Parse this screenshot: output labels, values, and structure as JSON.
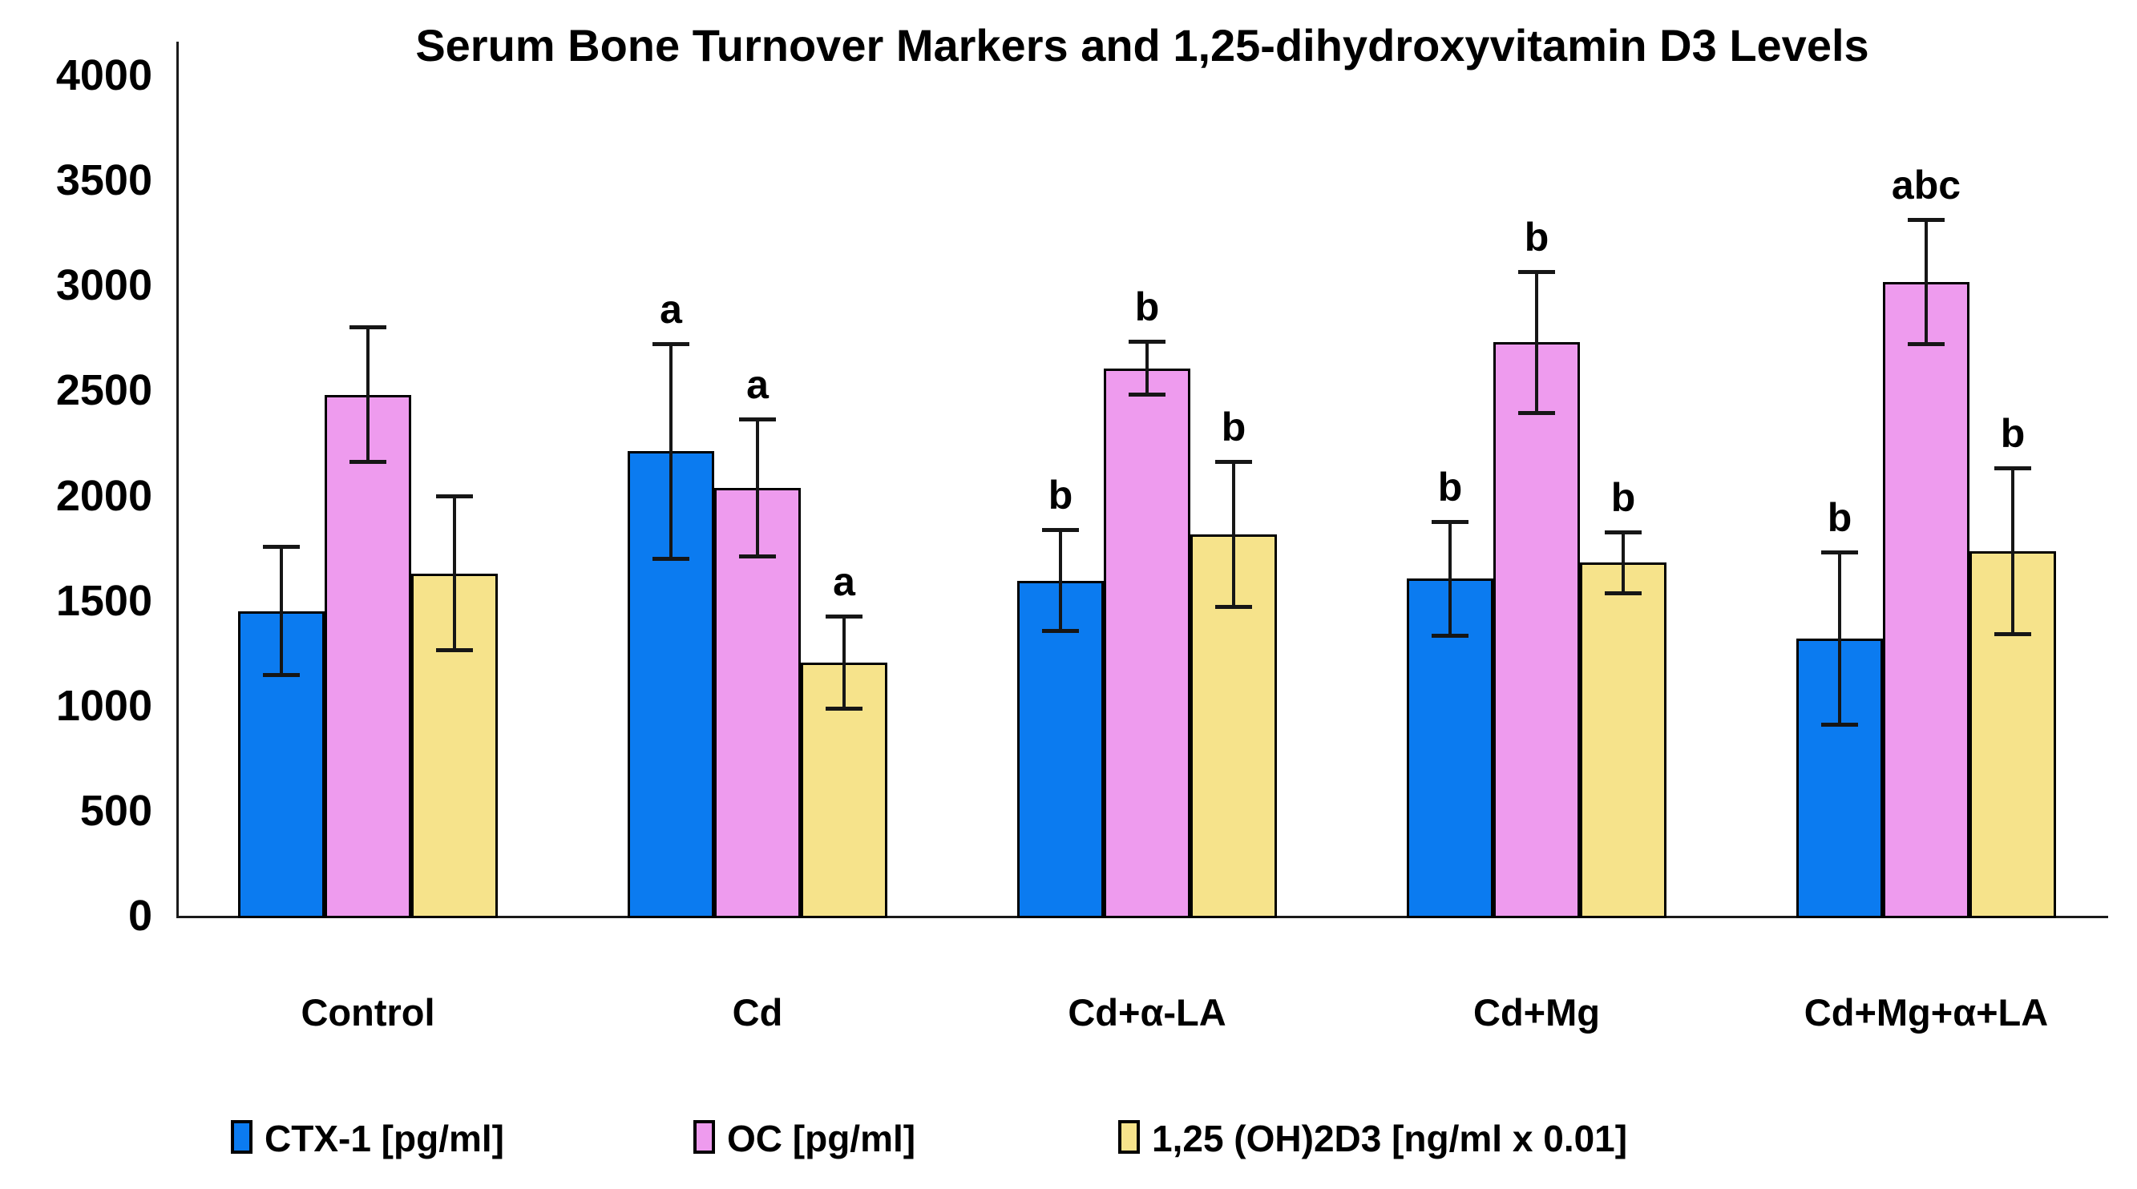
{
  "title": "Serum Bone Turnover Markers and 1,25-dihydroxyvitamin D3 Levels",
  "chart_data": {
    "type": "bar",
    "title": "Serum Bone Turnover Markers and 1,25-dihydroxyvitamin D3 Levels",
    "categories": [
      "Control",
      "Cd",
      "Cd+α-LA",
      "Cd+Mg",
      "Cd+Mg+α+LA"
    ],
    "series": [
      {
        "name": "CTX-1 [pg/ml]",
        "color": "#0b7bf0",
        "values": [
          1450,
          2210,
          1595,
          1605,
          1320
        ],
        "errors": [
          315,
          520,
          250,
          280,
          420
        ],
        "letters": [
          "",
          "a",
          "b",
          "b",
          "b"
        ]
      },
      {
        "name": "OC [pg/ml]",
        "color": "#ee9bee",
        "values": [
          2480,
          2035,
          2605,
          2730,
          3015
        ],
        "errors": [
          330,
          335,
          135,
          345,
          305
        ],
        "letters": [
          "",
          "a",
          "b",
          "b",
          "abc"
        ]
      },
      {
        "name": "1,25 (OH)2D3 [ng/ml x 0.01]",
        "color": "#f6e38b",
        "values": [
          1630,
          1205,
          1815,
          1680,
          1735
        ],
        "errors": [
          375,
          230,
          355,
          155,
          405
        ],
        "letters": [
          "",
          "a",
          "b",
          "b",
          "b"
        ]
      }
    ],
    "ylim": [
      0,
      4000
    ],
    "ytick_step": 500,
    "ytick_labels": [
      "0",
      "500",
      "1000",
      "1500",
      "2000",
      "2500",
      "3000",
      "3500",
      "4000"
    ],
    "grid": false,
    "legend_position": "bottom",
    "error_bar_color": "#161616",
    "axis_color": "#1a1a1a",
    "background_color": "#ffffff"
  }
}
